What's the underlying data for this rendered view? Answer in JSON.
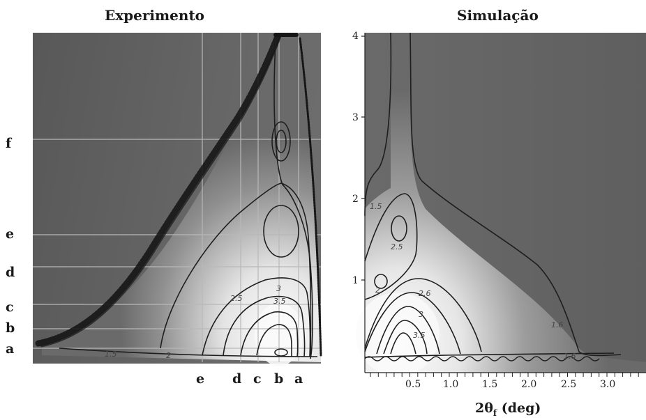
{
  "left_panel": {
    "title": "Experimento",
    "row_labels": [
      "f",
      "e",
      "d",
      "c",
      "b",
      "a"
    ],
    "col_labels": [
      "e",
      "d",
      "c",
      "b",
      "a"
    ],
    "contour_labels": [
      "1.5",
      "2",
      "2.5",
      "3",
      "3.5"
    ]
  },
  "right_panel": {
    "title": "Simulação",
    "y_ticks": [
      "1",
      "2",
      "3",
      "4"
    ],
    "x_ticks": [
      "0.5",
      "1.0",
      "1.5",
      "2.0",
      "2.5",
      "3.0"
    ],
    "x_axis_label": "2θ",
    "x_axis_subscript": "f",
    "x_axis_unit": "(deg)",
    "contour_labels": [
      "1.5",
      "2.5",
      "2",
      "2.6",
      "3",
      "3.5",
      "1.6",
      "1.6"
    ]
  },
  "colors": {
    "background": "#ffffff",
    "map_dark": "#5c5c5c",
    "map_bright": "#f4f4f4",
    "contour": "#1e1e1e",
    "grid": "#bdbdbd"
  }
}
